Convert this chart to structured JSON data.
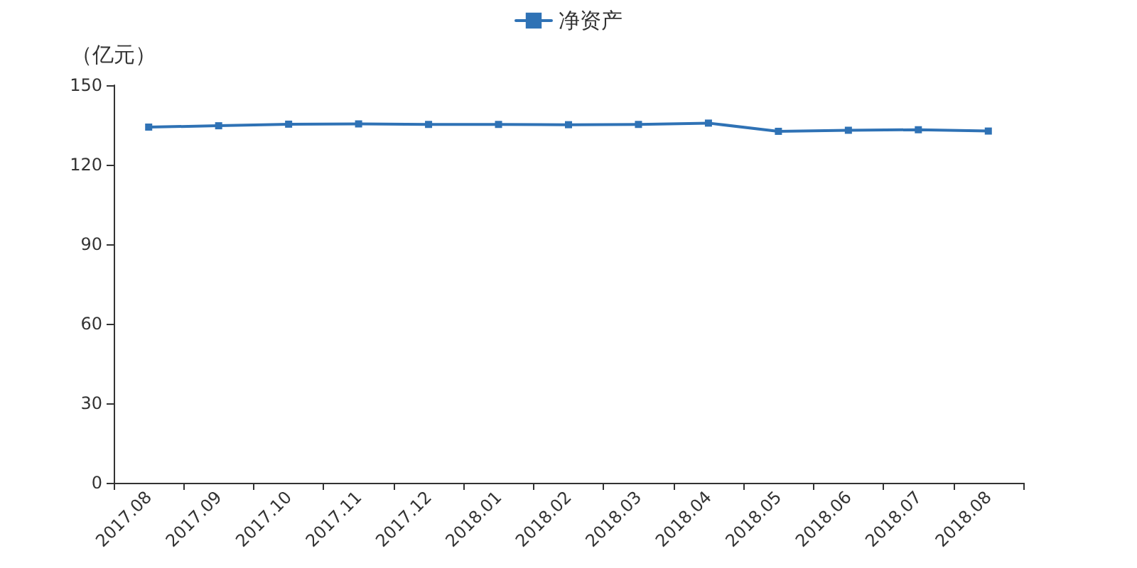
{
  "chart_data": {
    "type": "line",
    "ylabel": "（亿元）",
    "categories": [
      "2017.08",
      "2017.09",
      "2017.10",
      "2017.11",
      "2017.12",
      "2018.01",
      "2018.02",
      "2018.03",
      "2018.04",
      "2018.05",
      "2018.06",
      "2018.07",
      "2018.08"
    ],
    "series": [
      {
        "name": "净资产",
        "color": "#2f72b5",
        "values": [
          134.2,
          134.7,
          135.3,
          135.4,
          135.2,
          135.2,
          135.1,
          135.2,
          135.7,
          132.6,
          133.0,
          133.2,
          132.7
        ]
      }
    ],
    "ylim": [
      0,
      150
    ],
    "yticks": [
      0,
      30,
      60,
      90,
      120,
      150
    ],
    "grid": false,
    "legend": "top",
    "marker": "square",
    "line_style": "solid"
  }
}
